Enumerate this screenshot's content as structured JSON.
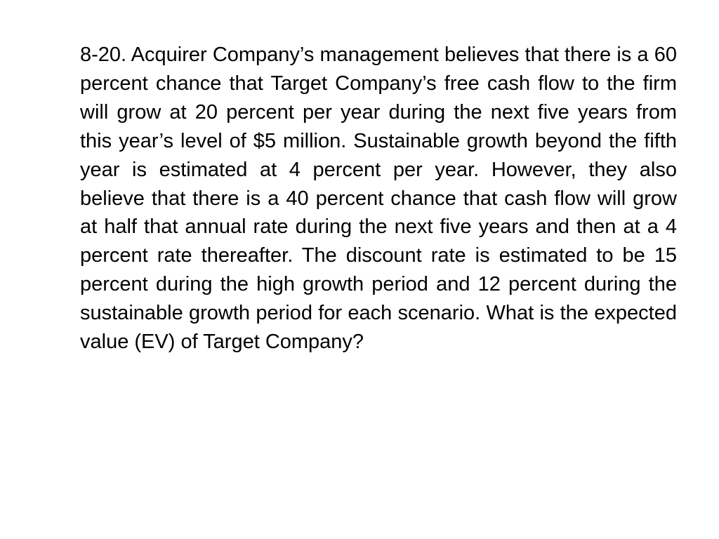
{
  "slide": {
    "problem_text": "8-20.  Acquirer Company’s management believes that there is a 60 percent chance that Target Company’s free cash flow to the firm will grow at 20 percent per year during the next five years from this year’s level of $5 million.  Sustainable growth beyond the fifth year is estimated at 4 percent per year.  However, they also believe that there is a 40 percent chance that cash flow will grow at half that annual rate during the next five years and then at a 4 percent rate thereafter.  The discount rate is estimated to be 15 percent during the high growth period and 12 percent during the sustainable growth period for each scenario.  What is the expected value (EV) of Target Company?"
  },
  "colors": {
    "background": "#ffffff",
    "text": "#000000"
  }
}
